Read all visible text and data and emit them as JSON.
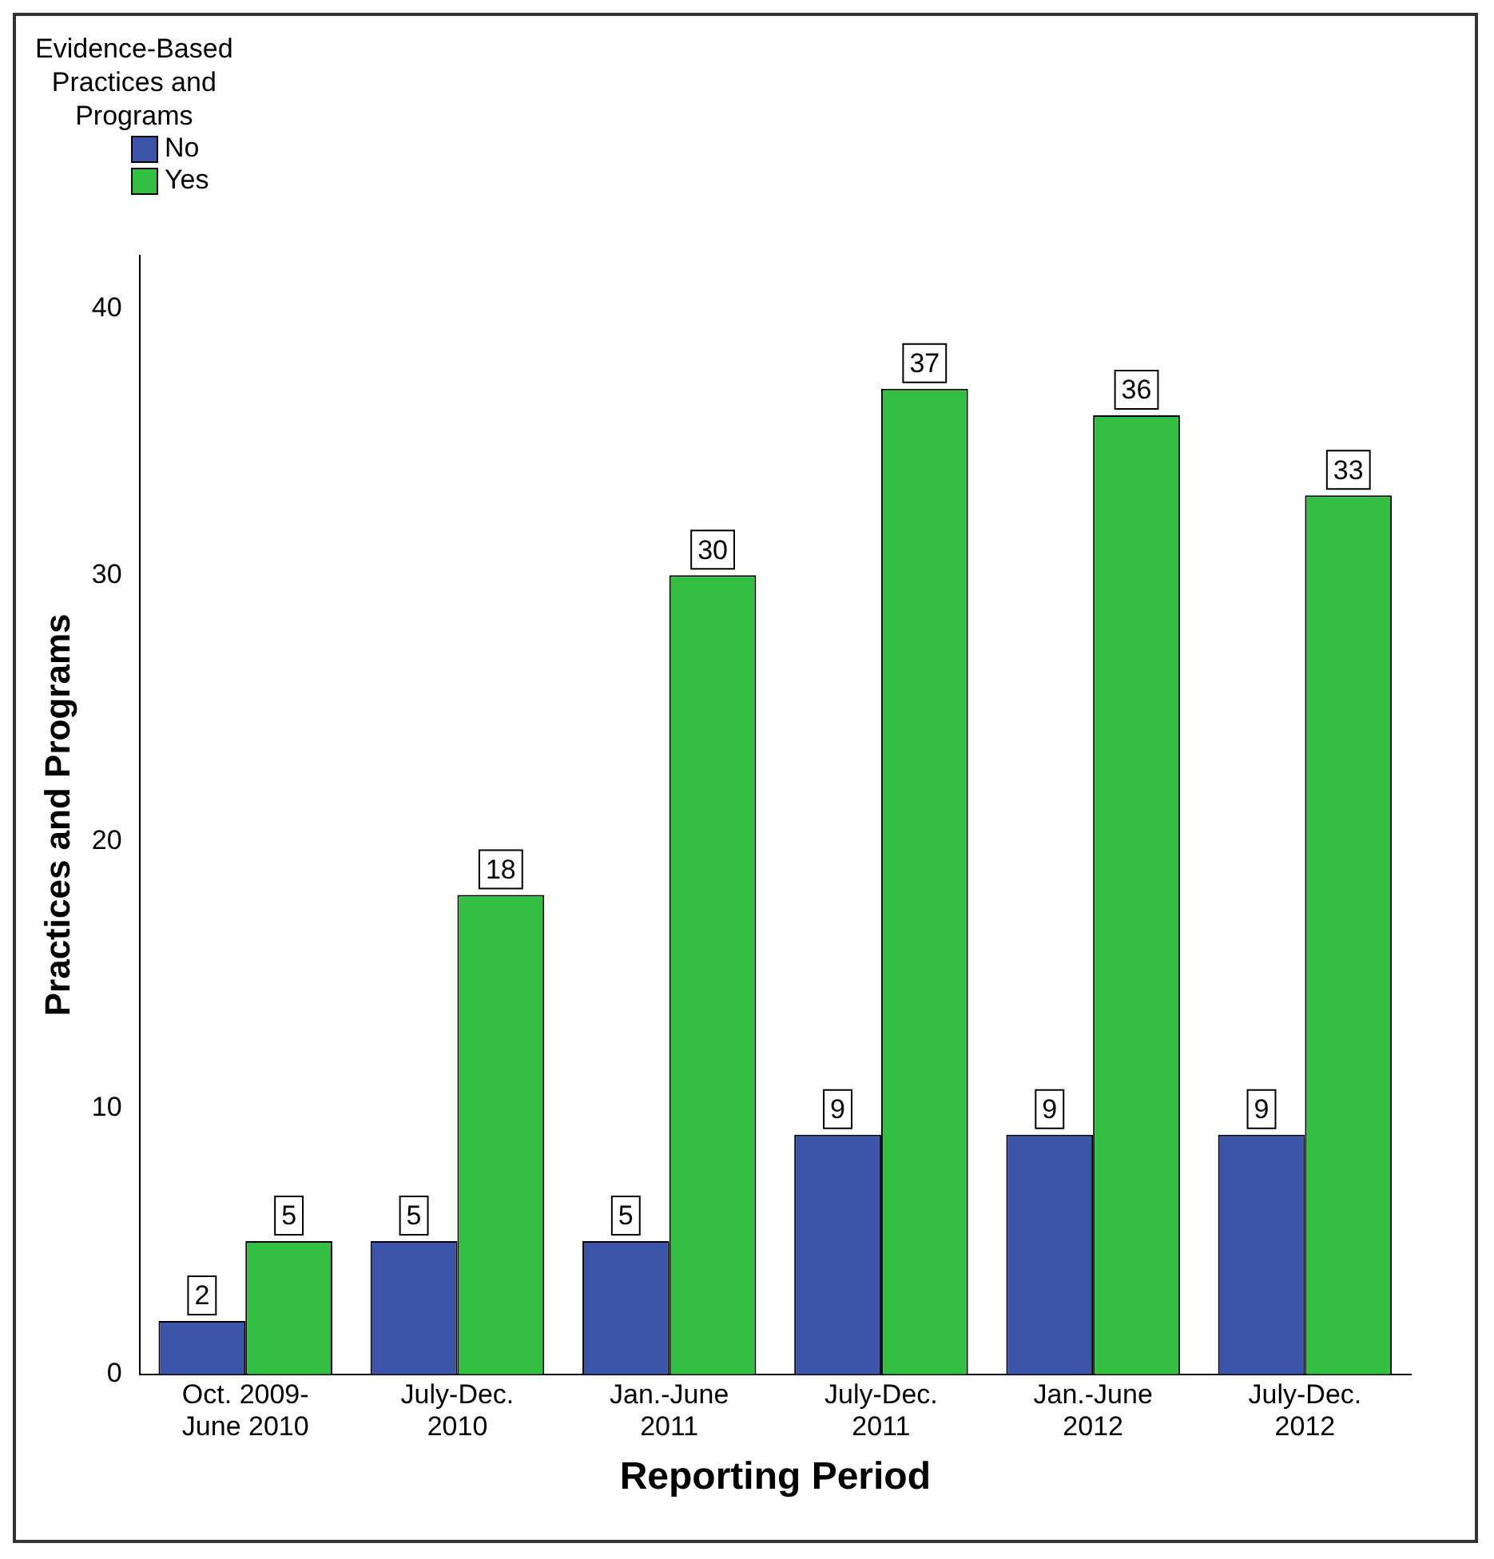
{
  "chart_data": {
    "type": "bar",
    "xlabel": "Reporting Period",
    "ylabel": "Practices and Programs",
    "legend_title": "Evidence-Based\nPractices and\nPrograms",
    "categories": [
      "Oct. 2009-\nJune 2010",
      "July-Dec.\n2010",
      "Jan.-June\n2011",
      "July-Dec.\n2011",
      "Jan.-June\n2012",
      "July-Dec.\n2012"
    ],
    "series": [
      {
        "name": "No",
        "color": "#3d55a8",
        "values": [
          2,
          5,
          5,
          9,
          9,
          9
        ]
      },
      {
        "name": "Yes",
        "color": "#33bf42",
        "values": [
          5,
          18,
          30,
          37,
          36,
          33
        ]
      }
    ],
    "ylim": [
      0,
      42
    ],
    "yticks": [
      0,
      10,
      20,
      30,
      40
    ],
    "grid": false,
    "legend": "top left",
    "data_labels": true
  }
}
